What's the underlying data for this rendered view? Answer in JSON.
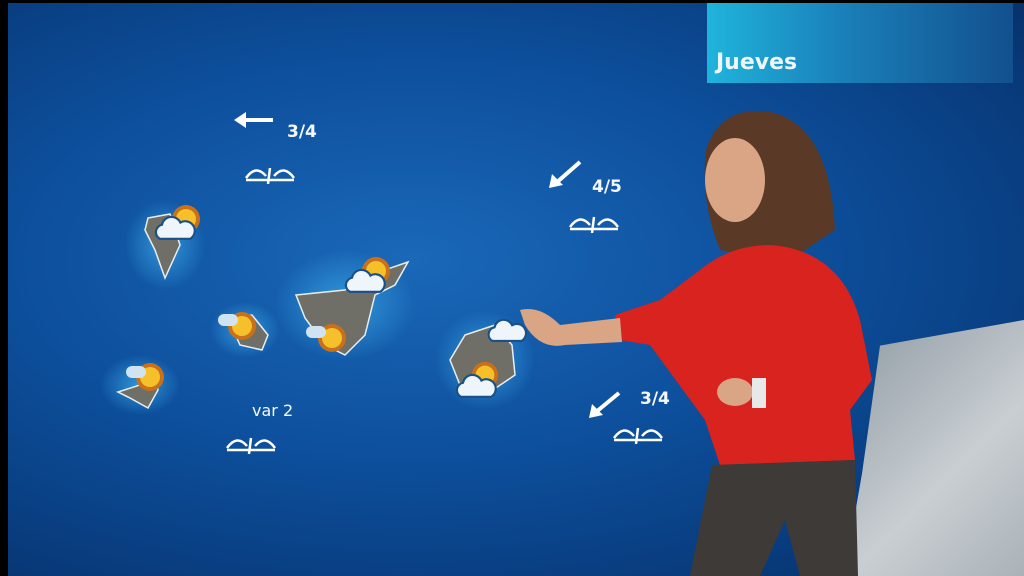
{
  "header": {
    "day": "Jueves"
  },
  "wind": [
    {
      "direction": "west",
      "force": "3/4"
    },
    {
      "direction": "southwest",
      "force": "4/5"
    },
    {
      "direction": "southwest",
      "force": "3/4"
    },
    {
      "direction": "variable",
      "force": "var 2"
    }
  ],
  "sea_state_icon": "moderate-sea-icon",
  "islands": [
    {
      "icon": "sun-behind-cloud-icon"
    },
    {
      "icon": "sun-behind-cloud-icon"
    },
    {
      "icon": "sun-with-haze-icon"
    },
    {
      "icon": "sun-with-haze-icon"
    },
    {
      "icon": "sun-with-haze-icon"
    },
    {
      "icon": "sun-behind-cloud-icon"
    },
    {
      "icon": "sun-behind-cloud-icon"
    },
    {
      "icon": "sun-behind-cloud-icon"
    }
  ],
  "colors": {
    "sea": "#0d4f9c",
    "banner": "#1fb4dc",
    "presenter_jacket": "#d8231e"
  }
}
